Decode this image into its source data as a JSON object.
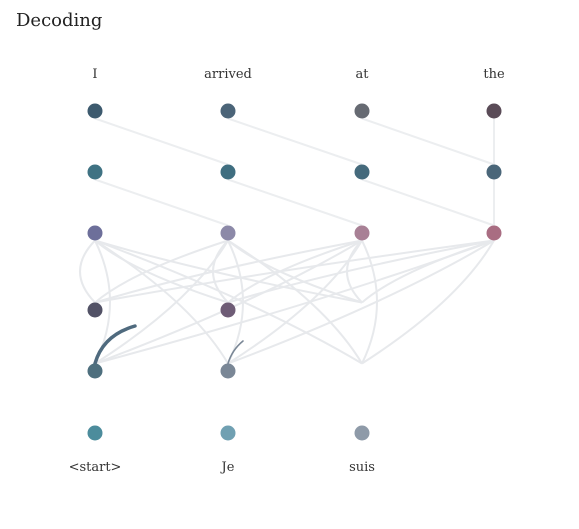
{
  "title": "Decoding",
  "encoder_words": [
    "I",
    "arrived",
    "at",
    "the"
  ],
  "decoder_words": [
    "<start>",
    "Je",
    "suis"
  ],
  "encoder_node_colors": [
    [
      "#3d5a6e",
      "#3f7283",
      "#6d6f9a"
    ],
    [
      "#4b6478",
      "#3f6e80",
      "#8c89a8"
    ],
    [
      "#666a72",
      "#456a7c",
      "#a88095"
    ],
    [
      "#5a4b57",
      "#4a6679",
      "#a96d82"
    ]
  ],
  "decoder_node_colors": [
    [
      "#4c8c9c",
      "#4e6f7e",
      "#525266"
    ],
    [
      "#70a0b2",
      "#7a8796",
      "#6e5c76"
    ],
    [
      "#8e9aa8"
    ]
  ]
}
